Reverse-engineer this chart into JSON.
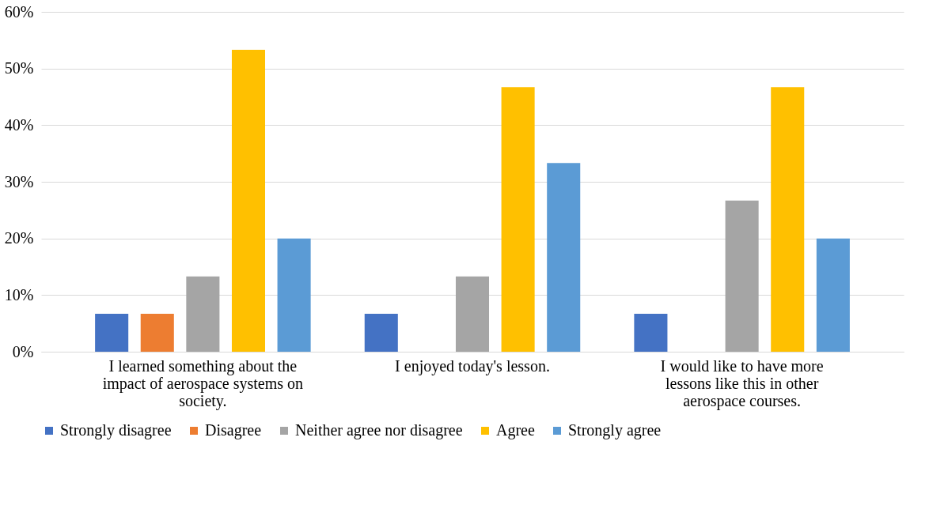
{
  "chart_data": {
    "type": "bar",
    "categories": [
      "I learned something about the impact of aerospace systems on society.",
      "I enjoyed today's lesson.",
      "I would like to have more lessons like this in other aerospace courses."
    ],
    "series": [
      {
        "name": "Strongly disagree",
        "color": "#4472c4",
        "values": [
          6.7,
          6.7,
          6.7
        ]
      },
      {
        "name": "Disagree",
        "color": "#ed7d31",
        "values": [
          6.7,
          0,
          0
        ]
      },
      {
        "name": "Neither agree nor disagree",
        "color": "#a5a5a5",
        "values": [
          13.3,
          13.3,
          26.7
        ]
      },
      {
        "name": "Agree",
        "color": "#ffc000",
        "values": [
          53.3,
          46.7,
          46.7
        ]
      },
      {
        "name": "Strongly agree",
        "color": "#5b9bd5",
        "values": [
          20,
          33.3,
          20
        ]
      }
    ],
    "ylim": [
      0,
      60
    ],
    "yticks": [
      {
        "value": 0,
        "label": "0%"
      },
      {
        "value": 10,
        "label": "10%"
      },
      {
        "value": 20,
        "label": "20%"
      },
      {
        "value": 30,
        "label": "30%"
      },
      {
        "value": 40,
        "label": "40%"
      },
      {
        "value": 50,
        "label": "50%"
      },
      {
        "value": 60,
        "label": "60%"
      }
    ],
    "grid": "y",
    "legend": "bottom"
  }
}
